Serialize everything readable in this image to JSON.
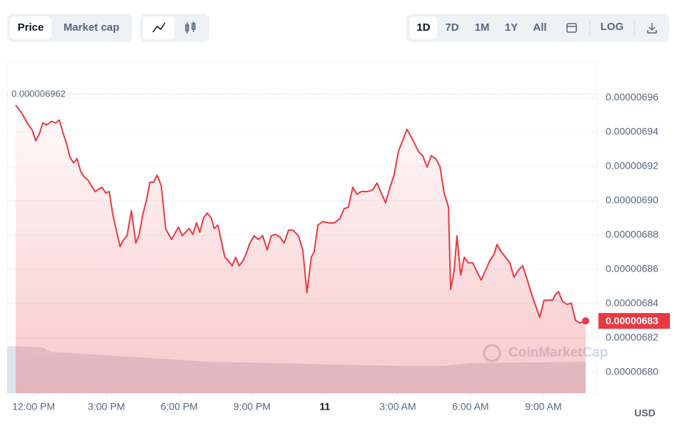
{
  "toolbar": {
    "metric_tabs": [
      "Price",
      "Market cap"
    ],
    "ranges": [
      "1D",
      "7D",
      "1M",
      "1Y",
      "All"
    ],
    "scale": "LOG"
  },
  "chart_data": {
    "type": "line",
    "color": "#ea3943",
    "grid": true,
    "x": [
      11.26,
      11.5,
      11.74,
      11.94,
      12.09,
      12.24,
      12.38,
      12.53,
      12.74,
      12.91,
      13.06,
      13.21,
      13.35,
      13.5,
      13.65,
      13.79,
      13.94,
      14.09,
      14.24,
      14.38,
      14.53,
      14.68,
      14.82,
      14.97,
      15.12,
      15.26,
      15.41,
      15.56,
      15.71,
      15.85,
      16.03,
      16.21,
      16.35,
      16.5,
      16.65,
      16.79,
      16.94,
      17.09,
      17.26,
      17.44,
      17.68,
      17.85,
      17.97,
      18.12,
      18.26,
      18.41,
      18.56,
      18.71,
      18.85,
      19,
      19.15,
      19.32,
      19.44,
      19.59,
      19.74,
      19.88,
      20.03,
      20.18,
      20.32,
      20.47,
      20.62,
      20.76,
      20.91,
      21.09,
      21.26,
      21.44,
      21.62,
      21.79,
      21.97,
      22.15,
      22.32,
      22.5,
      22.68,
      22.91,
      23.09,
      23.26,
      23.44,
      23.56,
      23.71,
      23.91,
      24.15,
      24.38,
      24.62,
      24.79,
      24.97,
      25.15,
      25.32,
      25.5,
      25.76,
      25.97,
      26.15,
      26.32,
      26.5,
      26.68,
      26.85,
      27.03,
      27.21,
      27.38,
      27.53,
      27.68,
      27.85,
      28.03,
      28.21,
      28.38,
      28.56,
      28.74,
      28.91,
      29.09,
      29.18,
      29.32,
      29.44,
      29.59,
      29.74,
      29.91,
      30.09,
      30.26,
      30.44,
      30.62,
      30.79,
      30.97,
      31.09,
      31.26,
      31.44,
      31.62,
      31.79,
      31.97,
      32.15,
      32.32,
      32.5,
      32.68,
      32.85,
      33.03,
      33.21,
      33.38,
      33.5,
      33.62,
      33.79,
      33.97,
      34.15,
      34.32,
      34.5,
      34.74
    ],
    "values": [
      6.9558e-06,
      6.9513e-06,
      6.9454e-06,
      6.9413e-06,
      6.935e-06,
      6.9392e-06,
      6.9454e-06,
      6.9442e-06,
      6.9463e-06,
      6.9454e-06,
      6.9471e-06,
      6.9396e-06,
      6.9338e-06,
      6.9254e-06,
      6.9221e-06,
      6.9246e-06,
      6.9171e-06,
      6.9138e-06,
      6.9121e-06,
      6.9088e-06,
      6.9054e-06,
      6.9067e-06,
      6.9079e-06,
      6.9046e-06,
      6.9054e-06,
      6.8921e-06,
      6.8829e-06,
      6.8733e-06,
      6.8775e-06,
      6.8796e-06,
      6.8942e-06,
      6.8754e-06,
      6.8804e-06,
      6.8921e-06,
      6.9004e-06,
      6.9108e-06,
      6.9108e-06,
      6.915e-06,
      6.9088e-06,
      6.8838e-06,
      6.8775e-06,
      6.8817e-06,
      6.8846e-06,
      6.8796e-06,
      6.8817e-06,
      6.8838e-06,
      6.8804e-06,
      6.8871e-06,
      6.8817e-06,
      6.89e-06,
      6.8929e-06,
      6.89e-06,
      6.8838e-06,
      6.8858e-06,
      6.8763e-06,
      6.8671e-06,
      6.865e-06,
      6.8621e-06,
      6.8671e-06,
      6.8621e-06,
      6.865e-06,
      6.8692e-06,
      6.8754e-06,
      6.8796e-06,
      6.8775e-06,
      6.8796e-06,
      6.8713e-06,
      6.8796e-06,
      6.8804e-06,
      6.8788e-06,
      6.8754e-06,
      6.8829e-06,
      6.8829e-06,
      6.8796e-06,
      6.8713e-06,
      6.8463e-06,
      6.8671e-06,
      6.8704e-06,
      6.8858e-06,
      6.8879e-06,
      6.8871e-06,
      6.8871e-06,
      6.8896e-06,
      6.8954e-06,
      6.8963e-06,
      6.9079e-06,
      6.9038e-06,
      6.9054e-06,
      6.9054e-06,
      6.9063e-06,
      6.9104e-06,
      6.9046e-06,
      6.8988e-06,
      6.9079e-06,
      6.915e-06,
      6.9288e-06,
      6.9354e-06,
      6.9417e-06,
      6.9379e-06,
      6.9338e-06,
      6.9288e-06,
      6.9263e-06,
      6.9196e-06,
      6.9263e-06,
      6.9246e-06,
      6.92e-06,
      6.9046e-06,
      6.8963e-06,
      6.8483e-06,
      6.8588e-06,
      6.8796e-06,
      6.8567e-06,
      6.8671e-06,
      6.8638e-06,
      6.8638e-06,
      6.8588e-06,
      6.8538e-06,
      6.8596e-06,
      6.865e-06,
      6.8688e-06,
      6.8746e-06,
      6.8704e-06,
      6.8671e-06,
      6.8638e-06,
      6.8554e-06,
      6.8596e-06,
      6.8621e-06,
      6.8546e-06,
      6.8463e-06,
      6.8388e-06,
      6.8321e-06,
      6.8421e-06,
      6.8421e-06,
      6.8421e-06,
      6.8454e-06,
      6.8471e-06,
      6.8413e-06,
      6.8396e-06,
      6.8404e-06,
      6.8304e-06,
      6.8288e-06,
      6.83e-06
    ],
    "xlim": [
      10.91,
      35.21
    ],
    "xticks": [
      {
        "value": 12,
        "label": "12:00 PM"
      },
      {
        "value": 15,
        "label": "3:00 PM"
      },
      {
        "value": 18,
        "label": "6:00 PM"
      },
      {
        "value": 21,
        "label": "9:00 PM"
      },
      {
        "value": 24,
        "label": "11"
      },
      {
        "value": 27,
        "label": "3:00 AM"
      },
      {
        "value": 30,
        "label": "6:00 AM"
      },
      {
        "value": 33,
        "label": "9:00 AM"
      }
    ],
    "ylim": [
      6.7879e-06,
      6.9804e-06
    ],
    "yticks": [
      {
        "value": 6.8e-06,
        "label": "0.00000680"
      },
      6.82e-06,
      6.84e-06,
      6.86e-06,
      6.88e-06,
      {
        "value": 6.9e-06,
        "label": "0.00000690"
      },
      6.92e-06,
      6.94e-06,
      6.96e-06
    ],
    "highest": 6.962e-06,
    "current": 6.83e-06,
    "currency": "USD",
    "watermark": "CoinMarketCap"
  }
}
